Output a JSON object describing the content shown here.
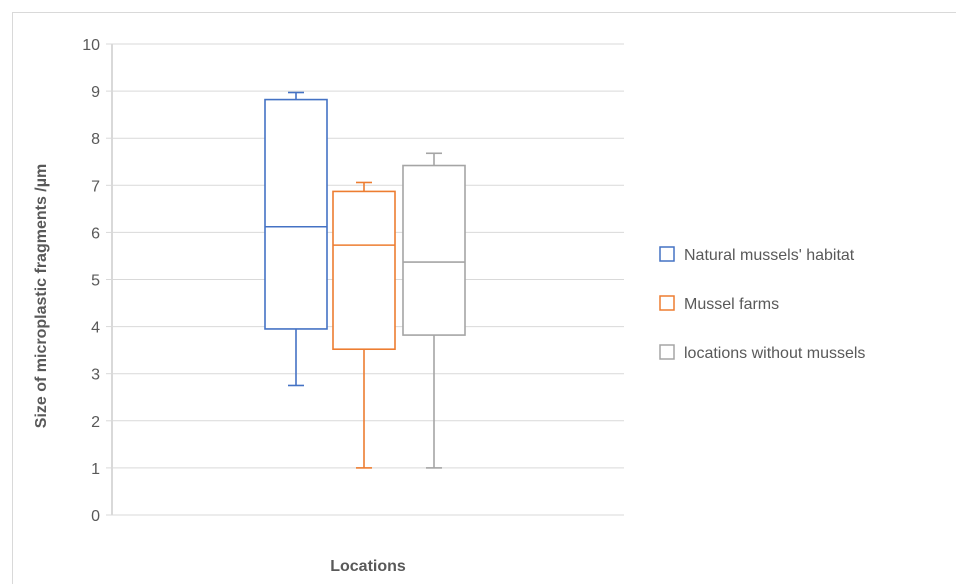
{
  "chart_data": {
    "type": "boxplot",
    "title": "",
    "xlabel": "Locations",
    "ylabel": "Size of microplastic fragments /µm",
    "ylim": [
      0,
      10
    ],
    "yticks": [
      "0",
      "1",
      "2",
      "3",
      "4",
      "5",
      "6",
      "7",
      "8",
      "9",
      "10"
    ],
    "grid": true,
    "legend_position": "right",
    "series": [
      {
        "name": "Natural mussels' habitat",
        "color": "#4472c4",
        "min": 2.75,
        "q1": 3.95,
        "median": 6.12,
        "q3": 8.82,
        "max": 8.97
      },
      {
        "name": "Mussel farms",
        "color": "#ed7d31",
        "min": 1.0,
        "q1": 3.52,
        "median": 5.73,
        "q3": 6.87,
        "max": 7.06
      },
      {
        "name": "locations without mussels",
        "color": "#a5a5a5",
        "min": 1.0,
        "q1": 3.82,
        "median": 5.37,
        "q3": 7.42,
        "max": 7.68
      }
    ]
  }
}
